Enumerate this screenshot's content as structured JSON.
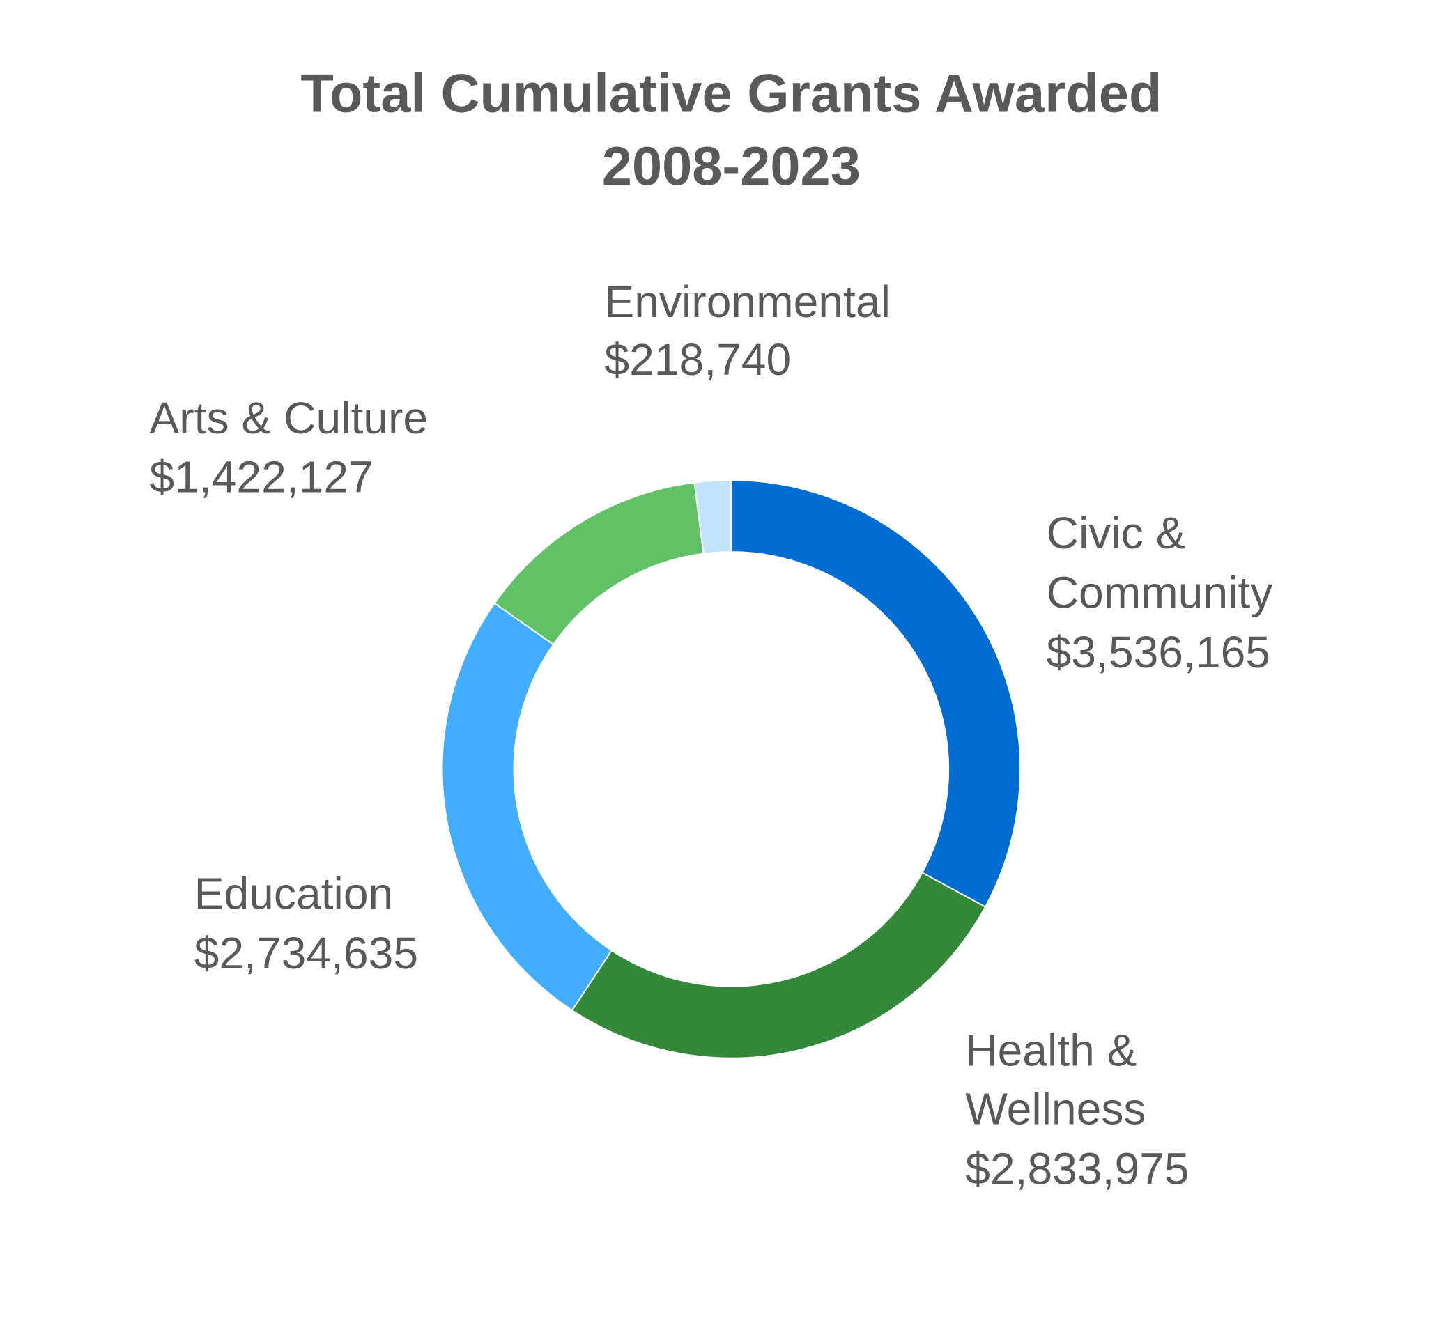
{
  "chart_data": {
    "type": "pie",
    "donut": true,
    "title": [
      "Total Cumulative Grants Awarded",
      "2008-2023"
    ],
    "slices": [
      {
        "name_lines": [
          "Civic &",
          "Community"
        ],
        "label": "$3,536,165",
        "value": 3536165,
        "color": "#006CD0"
      },
      {
        "name_lines": [
          "Health &",
          "Wellness"
        ],
        "label": "$2,833,975",
        "value": 2833975,
        "color": "#33883A"
      },
      {
        "name_lines": [
          "Education"
        ],
        "label": "$2,734,635",
        "value": 2734635,
        "color": "#42ADFF"
      },
      {
        "name_lines": [
          "Arts & Culture"
        ],
        "label": "$1,422,127",
        "value": 1422127,
        "color": "#62C066"
      },
      {
        "name_lines": [
          "Environmental"
        ],
        "label": "$218,740",
        "value": 218740,
        "color": "#C3E3FC"
      }
    ],
    "legend": "none",
    "data_labels": "outside"
  }
}
